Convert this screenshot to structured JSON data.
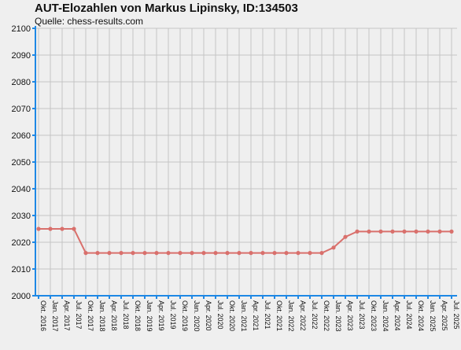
{
  "chart_data": {
    "type": "line",
    "title": "AUT-Elozahlen von Markus Lipinsky, ID:134503",
    "subtitle": "Quelle: chess-results.com",
    "xlabel": "",
    "ylabel": "",
    "ylim": [
      2000,
      2100
    ],
    "yticks": [
      2000,
      2010,
      2020,
      2030,
      2040,
      2050,
      2060,
      2070,
      2080,
      2090,
      2100
    ],
    "grid": true,
    "categories": [
      "Okt. 2016",
      "Jan. 2017",
      "Apr. 2017",
      "Jul. 2017",
      "Okt. 2017",
      "Jan. 2018",
      "Apr. 2018",
      "Jul. 2018",
      "Okt. 2018",
      "Jan. 2019",
      "Apr. 2019",
      "Jul. 2019",
      "Okt. 2019",
      "Jan. 2020",
      "Apr. 2020",
      "Jul. 2020",
      "Okt. 2020",
      "Jan. 2021",
      "Apr. 2021",
      "Jul. 2021",
      "Okt. 2021",
      "Jan. 2022",
      "Apr. 2022",
      "Jul. 2022",
      "Okt. 2022",
      "Jan. 2023",
      "Apr. 2023",
      "Jul. 2023",
      "Okt. 2023",
      "Jan. 2024",
      "Apr. 2024",
      "Jul. 2024",
      "Okt. 2024",
      "Jan. 2025",
      "Apr. 2025",
      "Jul. 2025"
    ],
    "series": [
      {
        "values": [
          2025,
          2025,
          2025,
          2025,
          2016,
          2016,
          2016,
          2016,
          2016,
          2016,
          2016,
          2016,
          2016,
          2016,
          2016,
          2016,
          2016,
          2016,
          2016,
          2016,
          2016,
          2016,
          2016,
          2016,
          2016,
          2018,
          2022,
          2024,
          2024,
          2024,
          2024,
          2024,
          2024,
          2024,
          2024,
          2024
        ]
      }
    ],
    "colors": {
      "line": "#d9706c",
      "axis": "#1e88e5",
      "grid": "#c4c4c4",
      "background": "#efefef"
    }
  }
}
